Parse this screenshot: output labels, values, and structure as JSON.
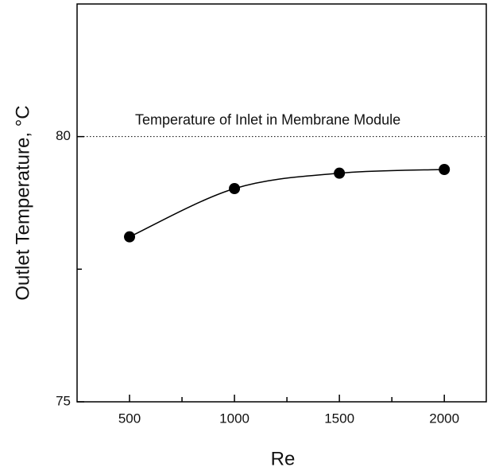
{
  "chart_data": {
    "type": "line",
    "x_label": "Re",
    "y_label": "Outlet Temperature,  °C",
    "x": [
      500,
      1000,
      1500,
      2000
    ],
    "series": [
      {
        "color": "#000000",
        "values": [
          78.11,
          79.02,
          79.31,
          79.38
        ]
      }
    ],
    "xlim": [
      250,
      2200
    ],
    "xticks": [
      500,
      1000,
      1500,
      2000
    ],
    "xminor_ticks": [
      750,
      1250,
      1750
    ],
    "ylim": [
      75,
      82.5
    ],
    "yticks": [
      75,
      80
    ],
    "yminor_ticks": [
      77.5
    ],
    "reference_line": {
      "value": 80,
      "label": "Temperature of Inlet in Membrane Module"
    },
    "grid": false
  }
}
